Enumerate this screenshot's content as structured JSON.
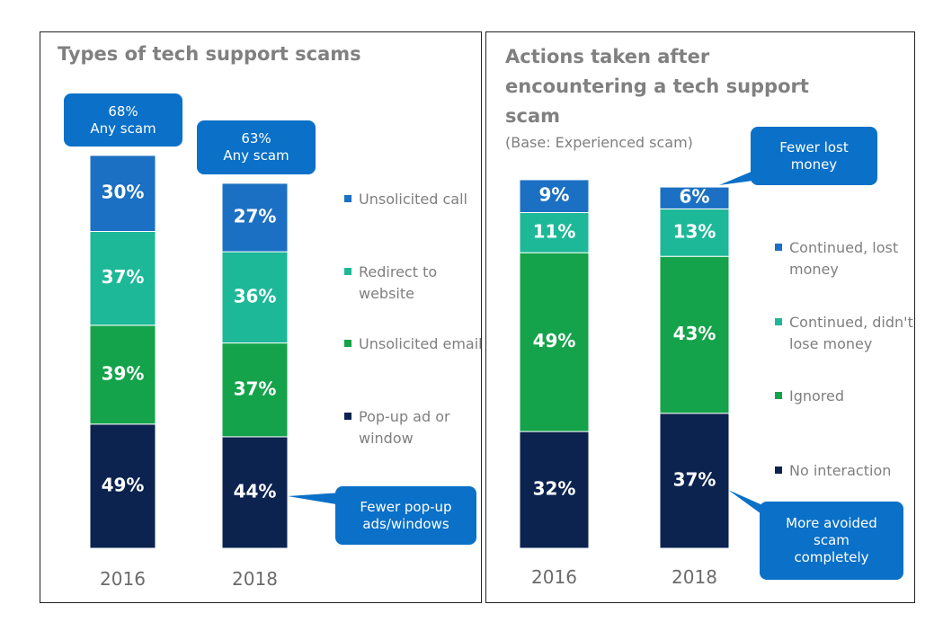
{
  "chart_data": [
    {
      "type": "bar",
      "stacked": true,
      "title": "Types of tech support scams",
      "categories": [
        "2016",
        "2018"
      ],
      "series": [
        {
          "name": "Unsolicited call",
          "color": "#1b70c3",
          "values": [
            30,
            27
          ],
          "value_labels": [
            "30%",
            "27%"
          ]
        },
        {
          "name": "Redirect to website",
          "color": "#1db898",
          "values": [
            37,
            36
          ],
          "value_labels": [
            "37%",
            "36%"
          ]
        },
        {
          "name": "Unsolicited email",
          "color": "#14a34a",
          "values": [
            39,
            37
          ],
          "value_labels": [
            "39%",
            "37%"
          ]
        },
        {
          "name": "Pop-up ad or window",
          "color": "#0c2350",
          "values": [
            49,
            44
          ],
          "value_labels": [
            "49%",
            "44%"
          ]
        }
      ],
      "annotations": [
        {
          "text": "68%\nAny scam"
        },
        {
          "text": "63%\nAny scam"
        },
        {
          "text": "Fewer pop-up\nads/windows"
        }
      ]
    },
    {
      "type": "bar",
      "stacked": true,
      "title": "Actions taken after encountering a tech support scam",
      "subtitle": "(Base: Experienced scam)",
      "categories": [
        "2016",
        "2018"
      ],
      "series": [
        {
          "name": "Continued, lost money",
          "color": "#1b70c3",
          "values": [
            9,
            6
          ],
          "value_labels": [
            "9%",
            "6%"
          ]
        },
        {
          "name": "Continued, didn't lose money",
          "color": "#1db898",
          "values": [
            11,
            13
          ],
          "value_labels": [
            "11%",
            "13%"
          ]
        },
        {
          "name": "Ignored",
          "color": "#14a34a",
          "values": [
            49,
            43
          ],
          "value_labels": [
            "49%",
            "43%"
          ]
        },
        {
          "name": "No interaction",
          "color": "#0c2350",
          "values": [
            32,
            37
          ],
          "value_labels": [
            "32%",
            "37%"
          ]
        }
      ],
      "annotations": [
        {
          "text": "Fewer lost\nmoney"
        },
        {
          "text": "More avoided\nscam\ncompletely"
        }
      ]
    }
  ]
}
